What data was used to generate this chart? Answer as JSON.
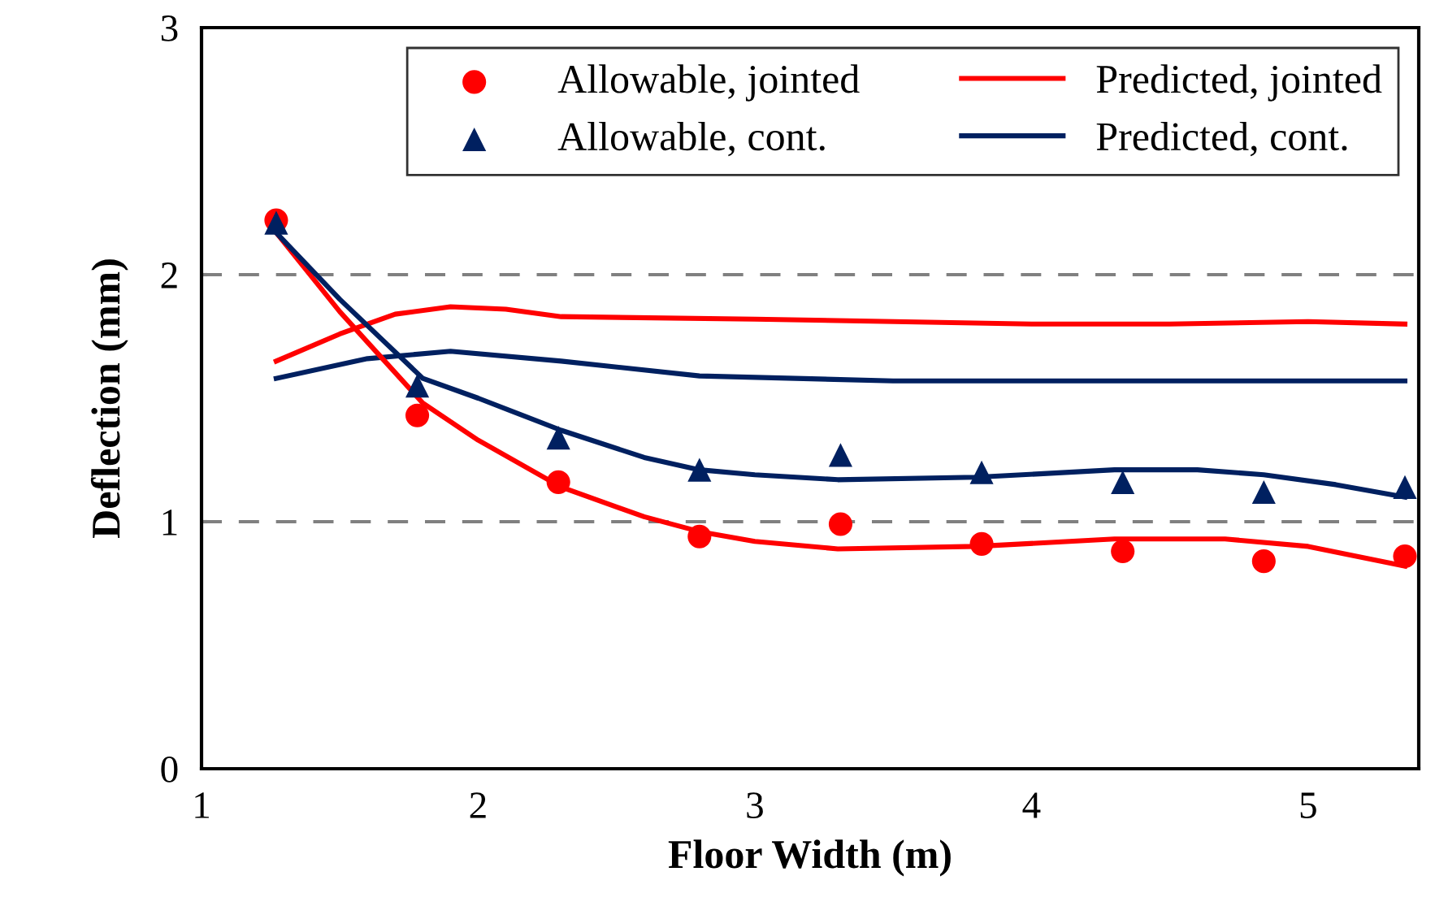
{
  "chart_data": {
    "type": "line",
    "xlabel": "Floor Width (m)",
    "ylabel": "Deflection (mm)",
    "xlim": [
      1,
      5.4
    ],
    "xticks": [
      1,
      2,
      3,
      4,
      5
    ],
    "ylim": [
      0,
      3
    ],
    "yticks": [
      0,
      1,
      2,
      3
    ],
    "grid": "y",
    "legend": "top right",
    "series": [
      {
        "name": "Allowable, jointed",
        "type": "scatter",
        "marker": "circle",
        "color": "#ff0000",
        "x": [
          1.27,
          1.78,
          2.29,
          2.8,
          3.31,
          3.82,
          4.33,
          4.84,
          5.35
        ],
        "values": [
          2.22,
          1.43,
          1.16,
          0.94,
          0.99,
          0.91,
          0.88,
          0.84,
          0.86
        ]
      },
      {
        "name": "Allowable, cont.",
        "type": "scatter",
        "marker": "triangle",
        "color": "#002060",
        "x": [
          1.27,
          1.78,
          2.29,
          2.8,
          3.31,
          3.82,
          4.33,
          4.84,
          5.35
        ],
        "values": [
          2.21,
          1.55,
          1.34,
          1.21,
          1.27,
          1.2,
          1.16,
          1.12,
          1.14
        ]
      },
      {
        "name": "Predicted, jointed",
        "line_style": "solid",
        "color": "#ff0000",
        "x": [
          1.27,
          1.5,
          1.7,
          1.9,
          2.1,
          2.3,
          3.0,
          4.0,
          4.5,
          5.0,
          5.35
        ],
        "values": [
          1.65,
          1.76,
          1.84,
          1.87,
          1.86,
          1.83,
          1.82,
          1.8,
          1.8,
          1.81,
          1.8
        ]
      },
      {
        "name": "Predicted, cont.",
        "line_style": "solid",
        "color": "#002060",
        "x": [
          1.27,
          1.6,
          1.9,
          2.3,
          2.8,
          3.5,
          4.5,
          5.35
        ],
        "values": [
          1.58,
          1.66,
          1.69,
          1.65,
          1.59,
          1.57,
          1.57,
          1.57
        ]
      },
      {
        "line_style": "solid",
        "color": "#ff0000",
        "x": [
          1.27,
          1.5,
          1.8,
          2.0,
          2.3,
          2.6,
          2.8,
          3.0,
          3.3,
          3.8,
          4.3,
          4.7,
          5.0,
          5.35
        ],
        "values": [
          2.17,
          1.85,
          1.48,
          1.33,
          1.14,
          1.02,
          0.96,
          0.92,
          0.89,
          0.9,
          0.93,
          0.93,
          0.9,
          0.82
        ]
      },
      {
        "line_style": "solid",
        "color": "#002060",
        "x": [
          1.27,
          1.5,
          1.8,
          2.0,
          2.3,
          2.6,
          2.8,
          3.0,
          3.3,
          3.8,
          4.3,
          4.6,
          4.84,
          5.1,
          5.35
        ],
        "values": [
          2.17,
          1.9,
          1.58,
          1.5,
          1.37,
          1.26,
          1.21,
          1.19,
          1.17,
          1.18,
          1.21,
          1.21,
          1.19,
          1.15,
          1.1
        ]
      }
    ]
  }
}
